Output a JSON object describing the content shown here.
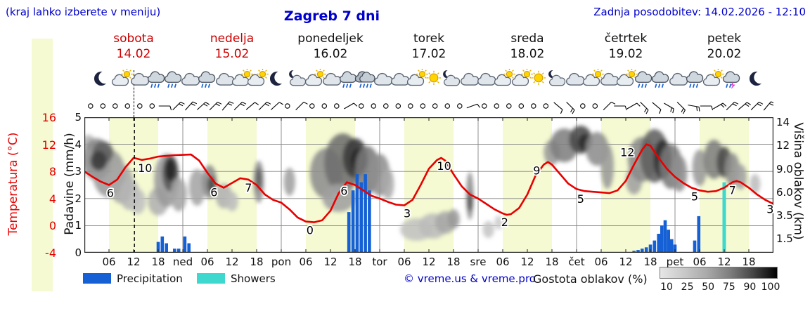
{
  "header": {
    "hint": "(kraj lahko izberete v meniju)",
    "title": "Zagreb 7 dni",
    "updated": "Zadnja posodobitev: 14.02.2026 - 12:10"
  },
  "days": [
    {
      "name": "sobota",
      "date": "14.02",
      "highlight": true
    },
    {
      "name": "nedelja",
      "date": "15.02",
      "highlight": true
    },
    {
      "name": "ponedeljek",
      "date": "16.02",
      "highlight": false
    },
    {
      "name": "torek",
      "date": "17.02",
      "highlight": false
    },
    {
      "name": "sreda",
      "date": "18.02",
      "highlight": false
    },
    {
      "name": "četrtek",
      "date": "19.02",
      "highlight": false
    },
    {
      "name": "petek",
      "date": "20.02",
      "highlight": false
    }
  ],
  "axes": {
    "temp_title": "Temperatura (°C)",
    "temp_ticks": [
      "16",
      "12",
      "8",
      "4",
      "0",
      "-4"
    ],
    "precip_title": "Padavine (mm/h)",
    "precip_ticks": [
      "5",
      "4",
      "3",
      "2",
      "1",
      "0"
    ],
    "cloud_title": "Višina oblakov (km)",
    "cloud_ticks": [
      "14",
      "12",
      "9.0",
      "6.0",
      "3.5",
      "1.5"
    ],
    "x_ticks": [
      "06",
      "12",
      "18",
      "ned",
      "06",
      "12",
      "18",
      "pon",
      "06",
      "12",
      "18",
      "tor",
      "06",
      "12",
      "18",
      "sre",
      "06",
      "12",
      "18",
      "čet",
      "06",
      "12",
      "18",
      "pet",
      "06",
      "12",
      "18"
    ]
  },
  "legend": {
    "precipitation": "Precipitation",
    "showers": "Showers",
    "credit": "© vreme.us & vreme.pro",
    "cloud_density_label": "Gostota oblakov (%)",
    "cloud_density_ticks": [
      "10",
      "25",
      "50",
      "75",
      "90",
      "100"
    ]
  },
  "colors": {
    "temperature": "#e80000",
    "precipitation": "#1560d4",
    "showers": "#3fd8cf",
    "day_band": "#f5fad2",
    "title_blue": "#0000cc",
    "highlight_red": "#cc0000"
  },
  "icons": [
    [
      4.2,
      "moon"
    ],
    [
      9,
      "cloud-sun"
    ],
    [
      13.6,
      "cloud"
    ],
    [
      17.7,
      "cloud-rain"
    ],
    [
      21.7,
      "cloud-rain"
    ],
    [
      25.8,
      "cloud"
    ],
    [
      30,
      "cloud-rain"
    ],
    [
      34.3,
      "cloud"
    ],
    [
      38.4,
      "cloud-sun"
    ],
    [
      42.1,
      "cloud-sun"
    ],
    [
      47.2,
      "moon"
    ],
    [
      52.1,
      "cloud-moon"
    ],
    [
      56.2,
      "cloud-sun"
    ],
    [
      60.3,
      "cloud"
    ],
    [
      64.5,
      "cloud-rain"
    ],
    [
      68.6,
      "cloud-heavy-rain"
    ],
    [
      72.8,
      "cloud"
    ],
    [
      76.9,
      "cloud"
    ],
    [
      81.1,
      "cloud-sun"
    ],
    [
      85.2,
      "sun"
    ],
    [
      89.6,
      "cloud-moon"
    ],
    [
      93.9,
      "cloud"
    ],
    [
      98.1,
      "cloud"
    ],
    [
      102.3,
      "cloud-sun"
    ],
    [
      106.6,
      "cloud-sun"
    ],
    [
      110.8,
      "sun"
    ],
    [
      115.4,
      "cloud-moon"
    ],
    [
      119.6,
      "cloud"
    ],
    [
      123.9,
      "cloud-sun"
    ],
    [
      128,
      "cloud"
    ],
    [
      132.2,
      "cloud-sun"
    ],
    [
      136.5,
      "cloud-rain"
    ],
    [
      140.5,
      "cloud-rain"
    ],
    [
      144.8,
      "cloud"
    ],
    [
      149,
      "cloud-rain"
    ],
    [
      153.2,
      "cloud-sun"
    ],
    [
      157.8,
      "cloud-thunder"
    ],
    [
      164.1,
      "moon"
    ]
  ],
  "wind": [
    "c",
    "c",
    "c",
    "c",
    "c",
    "c",
    [
      90,
      1
    ],
    [
      45,
      2
    ],
    [
      42,
      2
    ],
    [
      48,
      2
    ],
    [
      45,
      2
    ],
    [
      40,
      2
    ],
    [
      45,
      2
    ],
    [
      50,
      1
    ],
    [
      45,
      2
    ],
    [
      48,
      1
    ],
    "c",
    [
      45,
      1
    ],
    "c",
    "c",
    "c",
    [
      60,
      1
    ],
    "c",
    "c",
    "c",
    "c",
    "c",
    "c",
    "c",
    "c",
    "c",
    [
      70,
      1
    ],
    "c",
    "c",
    "c",
    "c",
    "c",
    "c",
    [
      130,
      1
    ],
    [
      135,
      2
    ],
    "c",
    "c",
    [
      45,
      1
    ],
    [
      90,
      1
    ],
    [
      60,
      1
    ],
    [
      135,
      2
    ],
    [
      130,
      1
    ],
    [
      120,
      2
    ],
    [
      135,
      2
    ],
    [
      100,
      2
    ],
    [
      90,
      1
    ],
    [
      60,
      2
    ],
    [
      45,
      2
    ],
    [
      50,
      2
    ],
    [
      45,
      2
    ],
    [
      40,
      2
    ]
  ],
  "chart_data": {
    "type": "line",
    "title": "Zagreb 7 dni",
    "x_unit": "hours from 14.02 00:00 (7 days x 24h)",
    "x_range": [
      0,
      168
    ],
    "temp_axis": {
      "label": "Temperatura (°C)",
      "range": [
        -4,
        16
      ]
    },
    "precip_axis": {
      "label": "Padavine (mm/h)",
      "range": [
        0,
        5
      ]
    },
    "cloud_axis": {
      "label": "Višina oblakov (km)",
      "ticks": [
        "14",
        "12",
        "9.0",
        "6.0",
        "3.5",
        "1.5"
      ]
    },
    "now_line_h": 12.2,
    "temperature_c": {
      "points": [
        [
          0,
          8
        ],
        [
          2,
          7.2
        ],
        [
          4,
          6.5
        ],
        [
          6,
          6
        ],
        [
          8,
          6.8
        ],
        [
          10,
          8.6
        ],
        [
          12,
          10
        ],
        [
          14,
          9.7
        ],
        [
          16,
          9.9
        ],
        [
          18,
          10.2
        ],
        [
          22,
          10.4
        ],
        [
          26,
          10.5
        ],
        [
          28,
          9.6
        ],
        [
          30,
          7.8
        ],
        [
          32,
          6.2
        ],
        [
          34,
          5.6
        ],
        [
          36,
          6.3
        ],
        [
          38,
          7
        ],
        [
          40,
          6.8
        ],
        [
          42,
          6
        ],
        [
          44,
          4.6
        ],
        [
          46,
          3.8
        ],
        [
          48,
          3.4
        ],
        [
          50,
          2.4
        ],
        [
          52,
          1.2
        ],
        [
          54,
          0.6
        ],
        [
          56,
          0.5
        ],
        [
          58,
          0.8
        ],
        [
          60,
          2.2
        ],
        [
          62,
          4.8
        ],
        [
          64,
          6.4
        ],
        [
          66,
          6
        ],
        [
          68,
          5.2
        ],
        [
          70,
          4.4
        ],
        [
          72,
          4
        ],
        [
          74,
          3.5
        ],
        [
          76,
          3.1
        ],
        [
          78,
          3
        ],
        [
          80,
          3.8
        ],
        [
          82,
          6
        ],
        [
          84,
          8.4
        ],
        [
          86,
          9.7
        ],
        [
          87,
          10
        ],
        [
          88,
          9.6
        ],
        [
          90,
          7.6
        ],
        [
          92,
          5.8
        ],
        [
          94,
          4.6
        ],
        [
          96,
          4
        ],
        [
          98,
          3.2
        ],
        [
          100,
          2.4
        ],
        [
          102,
          1.8
        ],
        [
          103,
          1.6
        ],
        [
          104,
          1.7
        ],
        [
          106,
          2.6
        ],
        [
          108,
          4.6
        ],
        [
          110,
          7.4
        ],
        [
          112,
          9
        ],
        [
          113,
          9.4
        ],
        [
          114,
          9
        ],
        [
          116,
          7.6
        ],
        [
          118,
          6.2
        ],
        [
          120,
          5.4
        ],
        [
          122,
          5.1
        ],
        [
          124,
          5
        ],
        [
          126,
          4.9
        ],
        [
          128,
          4.8
        ],
        [
          130,
          5.2
        ],
        [
          132,
          6.6
        ],
        [
          134,
          9
        ],
        [
          136,
          11.2
        ],
        [
          137,
          12
        ],
        [
          138,
          11.8
        ],
        [
          140,
          10
        ],
        [
          142,
          8.4
        ],
        [
          144,
          7.2
        ],
        [
          146,
          6.3
        ],
        [
          148,
          5.6
        ],
        [
          150,
          5.2
        ],
        [
          152,
          5
        ],
        [
          154,
          5.1
        ],
        [
          156,
          5.6
        ],
        [
          158,
          6.4
        ],
        [
          159,
          6.6
        ],
        [
          160,
          6.4
        ],
        [
          162,
          5.6
        ],
        [
          164,
          4.6
        ],
        [
          166,
          3.8
        ],
        [
          168,
          3.2
        ]
      ]
    },
    "temperature_labels": [
      [
        6.3,
        6,
        "6"
      ],
      [
        14.8,
        9.7,
        "10"
      ],
      [
        31.6,
        6.1,
        "6"
      ],
      [
        40,
        6.8,
        "7"
      ],
      [
        55,
        0.5,
        "0"
      ],
      [
        63.3,
        6.3,
        "6"
      ],
      [
        78.7,
        3,
        "3"
      ],
      [
        87.7,
        10,
        "10"
      ],
      [
        102.5,
        1.7,
        "2"
      ],
      [
        110.3,
        9.3,
        "9"
      ],
      [
        121,
        5.1,
        "5"
      ],
      [
        132.4,
        12,
        "12"
      ],
      [
        148.8,
        5.5,
        "5"
      ],
      [
        158,
        6.4,
        "7"
      ],
      [
        167.2,
        3.6,
        "3"
      ]
    ],
    "precipitation_mmh": [
      [
        18,
        0.4
      ],
      [
        19,
        0.6
      ],
      [
        20,
        0.35
      ],
      [
        22,
        0.15
      ],
      [
        23,
        0.15
      ],
      [
        24.5,
        0.6
      ],
      [
        25.5,
        0.35
      ],
      [
        64.5,
        1.5
      ],
      [
        65.5,
        2.3
      ],
      [
        66.5,
        2.9
      ],
      [
        67.5,
        2.6
      ],
      [
        68.5,
        2.9
      ],
      [
        69.5,
        2.3
      ],
      [
        134,
        0.07
      ],
      [
        135,
        0.1
      ],
      [
        136,
        0.15
      ],
      [
        137,
        0.2
      ],
      [
        138,
        0.3
      ],
      [
        139,
        0.45
      ],
      [
        140,
        0.7
      ],
      [
        140.8,
        1
      ],
      [
        141.6,
        1.2
      ],
      [
        142.4,
        0.85
      ],
      [
        143.2,
        0.5
      ],
      [
        144,
        0.3
      ],
      [
        148.8,
        0.45
      ],
      [
        149.8,
        1.35
      ]
    ],
    "showers_mmh": [
      [
        156,
        2.6
      ]
    ],
    "cloud_blobs_format": "[hour, y_px_from_plot_top, rx_hours, ry_px, gray]",
    "cloud_blobs": [
      [
        1,
        35,
        1.5,
        10,
        "#b4b4b4"
      ],
      [
        3,
        60,
        3.5,
        30,
        "#8a8a8a"
      ],
      [
        6,
        80,
        4,
        34,
        "#9a9a9a"
      ],
      [
        4.5,
        50,
        2.5,
        16,
        "#5f5f5f"
      ],
      [
        3.5,
        62,
        2,
        14,
        "#3a3a3a"
      ],
      [
        9,
        95,
        3,
        28,
        "#a8a8a8"
      ],
      [
        11,
        110,
        2.5,
        22,
        "#b5b5b5"
      ],
      [
        13,
        120,
        2,
        18,
        "#c0c0c0"
      ],
      [
        18,
        120,
        2.5,
        20,
        "#b0b0b0"
      ],
      [
        20,
        90,
        3,
        38,
        "#9a9a9a"
      ],
      [
        21,
        80,
        2,
        26,
        "#555555"
      ],
      [
        21,
        75,
        1.3,
        16,
        "#262626"
      ],
      [
        23,
        110,
        2,
        24,
        "#a5a5a5"
      ],
      [
        27.5,
        100,
        2,
        26,
        "#a5a5a5"
      ],
      [
        30.5,
        92,
        1.8,
        24,
        "#8a8a8a"
      ],
      [
        31,
        96,
        1,
        12,
        "#4a4a4a"
      ],
      [
        34,
        112,
        2,
        18,
        "#b0b0b0"
      ],
      [
        36,
        120,
        1.5,
        14,
        "#bdbdbd"
      ],
      [
        42.5,
        92,
        1.3,
        30,
        "#909090"
      ],
      [
        42.5,
        88,
        0.7,
        16,
        "#5a5a5a"
      ],
      [
        50,
        92,
        1.4,
        20,
        "#a0a0a0"
      ],
      [
        59,
        80,
        4,
        36,
        "#8d8d8d"
      ],
      [
        63,
        65,
        4.5,
        42,
        "#6e6e6e"
      ],
      [
        66,
        58,
        3,
        28,
        "#3a3a3a"
      ],
      [
        67,
        62,
        2,
        18,
        "#222222"
      ],
      [
        69,
        75,
        3,
        34,
        "#7a7a7a"
      ],
      [
        72,
        82,
        2.5,
        30,
        "#909090"
      ],
      [
        62,
        115,
        4,
        20,
        "#a0a0a0"
      ],
      [
        74,
        95,
        1.5,
        22,
        "#ababab"
      ],
      [
        81,
        160,
        4,
        16,
        "#c2c2c2"
      ],
      [
        85,
        155,
        3.5,
        18,
        "#bcbcbc"
      ],
      [
        88,
        150,
        2.5,
        16,
        "#a8a8a8"
      ],
      [
        90,
        145,
        1.5,
        14,
        "#9a9a9a"
      ],
      [
        94,
        112,
        0.9,
        34,
        "#8a8a8a"
      ],
      [
        94,
        120,
        0.6,
        14,
        "#4f4f4f"
      ],
      [
        98.5,
        160,
        1.4,
        12,
        "#c5c5c5"
      ],
      [
        101,
        150,
        1,
        10,
        "#cccccc"
      ],
      [
        114,
        50,
        2,
        18,
        "#9a9a9a"
      ],
      [
        117,
        40,
        3.5,
        24,
        "#808080"
      ],
      [
        121,
        32,
        2.8,
        20,
        "#4a4a4a"
      ],
      [
        122,
        36,
        1.6,
        12,
        "#2b2b2b"
      ],
      [
        125,
        45,
        2.8,
        24,
        "#8d8d8d"
      ],
      [
        127.5,
        70,
        1.6,
        32,
        "#9a9a9a"
      ],
      [
        134,
        90,
        2,
        20,
        "#a0a0a0"
      ],
      [
        136,
        60,
        3.5,
        32,
        "#8a8a8a"
      ],
      [
        139,
        55,
        3.5,
        38,
        "#606060"
      ],
      [
        141,
        60,
        2.2,
        28,
        "#2e2e2e"
      ],
      [
        143,
        70,
        2.8,
        32,
        "#7a7a7a"
      ],
      [
        145,
        80,
        2,
        26,
        "#909090"
      ],
      [
        150,
        72,
        1.8,
        26,
        "#9a9a9a"
      ],
      [
        153.5,
        60,
        2.5,
        28,
        "#7e7e7e"
      ],
      [
        156,
        64,
        1.8,
        22,
        "#4a4a4a"
      ],
      [
        158,
        75,
        1.8,
        24,
        "#8d8d8d"
      ],
      [
        160,
        85,
        1.5,
        18,
        "#a0a0a0"
      ],
      [
        163.5,
        95,
        1.3,
        14,
        "#bdbdbd"
      ]
    ]
  }
}
